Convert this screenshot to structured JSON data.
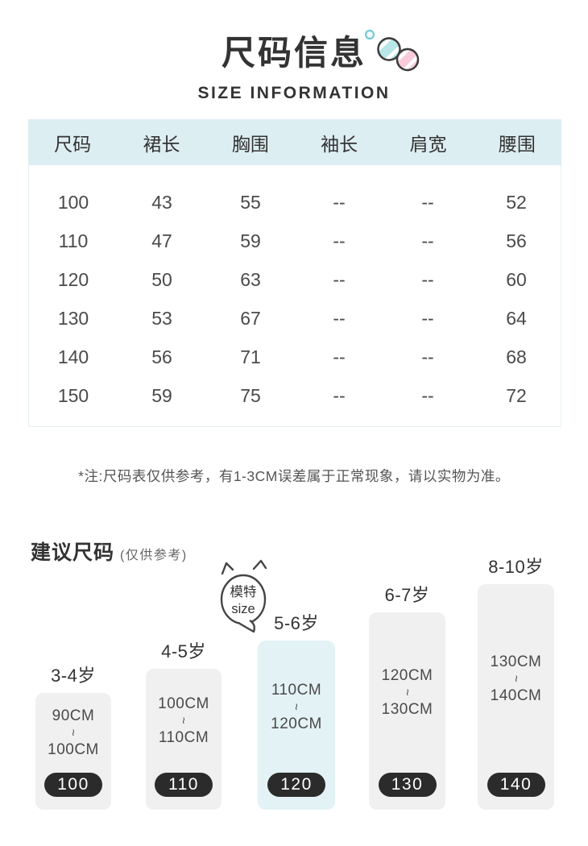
{
  "header": {
    "title_zh": "尺码信息",
    "title_en": "SIZE INFORMATION",
    "icons": [
      "small-circle-icon",
      "macaron-teal-icon",
      "macaron-pink-icon"
    ],
    "icon_colors": {
      "teal": "#b9e7e9",
      "pink": "#f8cbdb",
      "dot_stroke": "#74cbd4",
      "outline": "#3c3c3c"
    }
  },
  "table": {
    "header_bg": "#ddeef2",
    "columns": [
      "尺码",
      "裙长",
      "胸围",
      "袖长",
      "肩宽",
      "腰围"
    ],
    "rows": [
      [
        "100",
        "43",
        "55",
        "--",
        "--",
        "52"
      ],
      [
        "110",
        "47",
        "59",
        "--",
        "--",
        "56"
      ],
      [
        "120",
        "50",
        "63",
        "--",
        "--",
        "60"
      ],
      [
        "130",
        "53",
        "67",
        "--",
        "--",
        "64"
      ],
      [
        "140",
        "56",
        "71",
        "--",
        "--",
        "68"
      ],
      [
        "150",
        "59",
        "75",
        "--",
        "--",
        "72"
      ]
    ]
  },
  "note": "*注:尺码表仅供参考，有1-3CM误差属于正常现象，请以实物为准。",
  "suggest": {
    "title": "建议尺码",
    "subtitle": "(仅供参考)",
    "bubble": {
      "line1": "模特",
      "line2": "size"
    },
    "tilde": "~",
    "bar_color": "#f0f0f0",
    "highlight_color": "#e3f2f5",
    "pill_color": "#2b2b2b",
    "columns": [
      {
        "age": "3-4岁",
        "range_from": "90CM",
        "range_to": "100CM",
        "size": "100",
        "highlight": false
      },
      {
        "age": "4-5岁",
        "range_from": "100CM",
        "range_to": "110CM",
        "size": "110",
        "highlight": false
      },
      {
        "age": "5-6岁",
        "range_from": "110CM",
        "range_to": "120CM",
        "size": "120",
        "highlight": true
      },
      {
        "age": "6-7岁",
        "range_from": "120CM",
        "range_to": "130CM",
        "size": "130",
        "highlight": false
      },
      {
        "age": "8-10岁",
        "range_from": "130CM",
        "range_to": "140CM",
        "size": "140",
        "highlight": false
      }
    ]
  },
  "chart_data": [
    {
      "type": "table",
      "title": "尺码信息 SIZE INFORMATION",
      "columns": [
        "尺码",
        "裙长",
        "胸围",
        "袖长",
        "肩宽",
        "腰围"
      ],
      "rows": [
        [
          "100",
          "43",
          "55",
          "--",
          "--",
          "52"
        ],
        [
          "110",
          "47",
          "59",
          "--",
          "--",
          "56"
        ],
        [
          "120",
          "50",
          "63",
          "--",
          "--",
          "60"
        ],
        [
          "130",
          "53",
          "67",
          "--",
          "--",
          "64"
        ],
        [
          "140",
          "56",
          "71",
          "--",
          "--",
          "68"
        ],
        [
          "150",
          "59",
          "75",
          "--",
          "--",
          "72"
        ]
      ]
    },
    {
      "type": "bar",
      "title": "建议尺码 (仅供参考)",
      "categories": [
        "3-4岁",
        "4-5岁",
        "5-6岁",
        "6-7岁",
        "8-10岁"
      ],
      "values": [
        "90CM~100CM",
        "100CM~110CM",
        "110CM~120CM",
        "120CM~130CM",
        "130CM~140CM"
      ],
      "bar_labels": [
        "100",
        "110",
        "120",
        "130",
        "140"
      ],
      "highlighted_bar": "120",
      "annotation": "模特size"
    }
  ]
}
